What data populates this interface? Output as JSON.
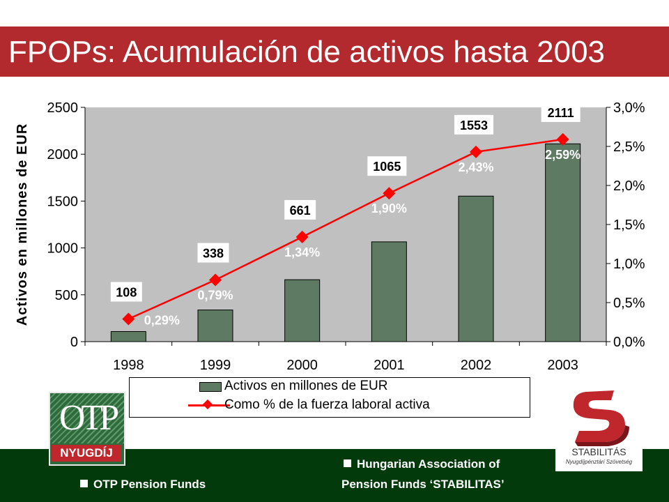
{
  "title": "FPOPs: Acumulación de activos hasta 2003",
  "chart_data": {
    "type": "bar",
    "categories": [
      "1998",
      "1999",
      "2000",
      "2001",
      "2002",
      "2003"
    ],
    "series": [
      {
        "name": "Activos en millones de EUR",
        "type": "bar",
        "axis": "left",
        "values": [
          108,
          338,
          661,
          1065,
          1553,
          2111
        ],
        "labels": [
          "108",
          "338",
          "661",
          "1065",
          "1553",
          "2111"
        ],
        "color": "#5f7a63"
      },
      {
        "name": "Como % de la fuerza laboral activa",
        "type": "line",
        "axis": "right",
        "values": [
          0.29,
          0.79,
          1.34,
          1.9,
          2.43,
          2.59
        ],
        "labels": [
          "0,29%",
          "0,79%",
          "1,34%",
          "1,90%",
          "2,43%",
          "2,59%"
        ],
        "color": "#ff0000"
      }
    ],
    "ylabel": "Activos en millones de EUR",
    "ylim": [
      0,
      2500
    ],
    "yticks": [
      "0",
      "500",
      "1000",
      "1500",
      "2000",
      "2500"
    ],
    "y2lim": [
      0,
      3.0
    ],
    "y2ticks": [
      "0,0%",
      "0,5%",
      "1,0%",
      "1,5%",
      "2,0%",
      "2,5%",
      "3,0%"
    ],
    "plot_background": "#c0c0c0",
    "grid": false,
    "legend_position": "bottom"
  },
  "legend": {
    "bar_label": "Activos en millones de EUR",
    "line_label": "Como % de la fuerza laboral activa"
  },
  "footer": {
    "left_text": "OTP Pension Funds",
    "right_line1": "Hungarian Association of",
    "right_line2": "Pension Funds ‘STABILITAS’"
  },
  "logos": {
    "otp_letters": "OTP",
    "otp_name": "NYUGDÍJ",
    "stabilitas_name": "STABILITÁS",
    "stabilitas_sub": "Nyugdíjpénztári Szövetség"
  },
  "colors": {
    "title_bar": "#b22a2e",
    "footer": "#033a0c",
    "bar": "#5f7a63",
    "line": "#ff0000"
  }
}
